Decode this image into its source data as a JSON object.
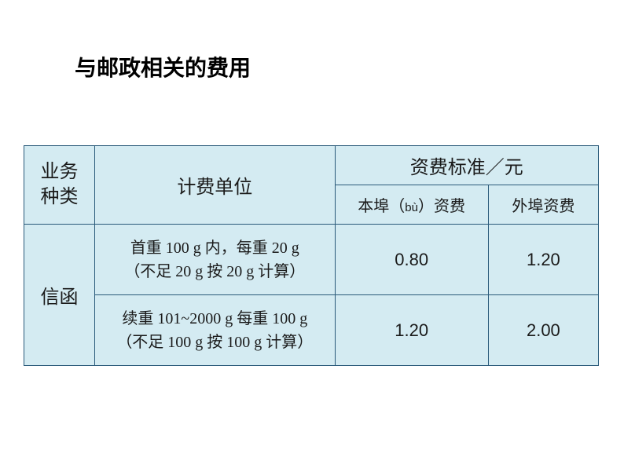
{
  "title": "与邮政相关的费用",
  "table": {
    "background_color": "#d4ebf2",
    "border_color": "#2a5a7a",
    "headers": {
      "col1_line1": "业务",
      "col1_line2": "种类",
      "col2": "计费单位",
      "col34": "资费标准／元",
      "sub_col3_part1": "本埠（",
      "sub_col3_pinyin": "bù",
      "sub_col3_part2": "）资费",
      "sub_col4": "外埠资费"
    },
    "rows": [
      {
        "category": "信函",
        "desc_line1": "首重 100 g 内，每重 20 g",
        "desc_line2": "（不足 20 g 按 20 g 计算）",
        "local_fee": "0.80",
        "remote_fee": "1.20"
      },
      {
        "desc_line1": "续重 101~2000 g 每重 100 g",
        "desc_line2": "（不足 100 g 按 100 g 计算）",
        "local_fee": "1.20",
        "remote_fee": "2.00"
      }
    ]
  }
}
